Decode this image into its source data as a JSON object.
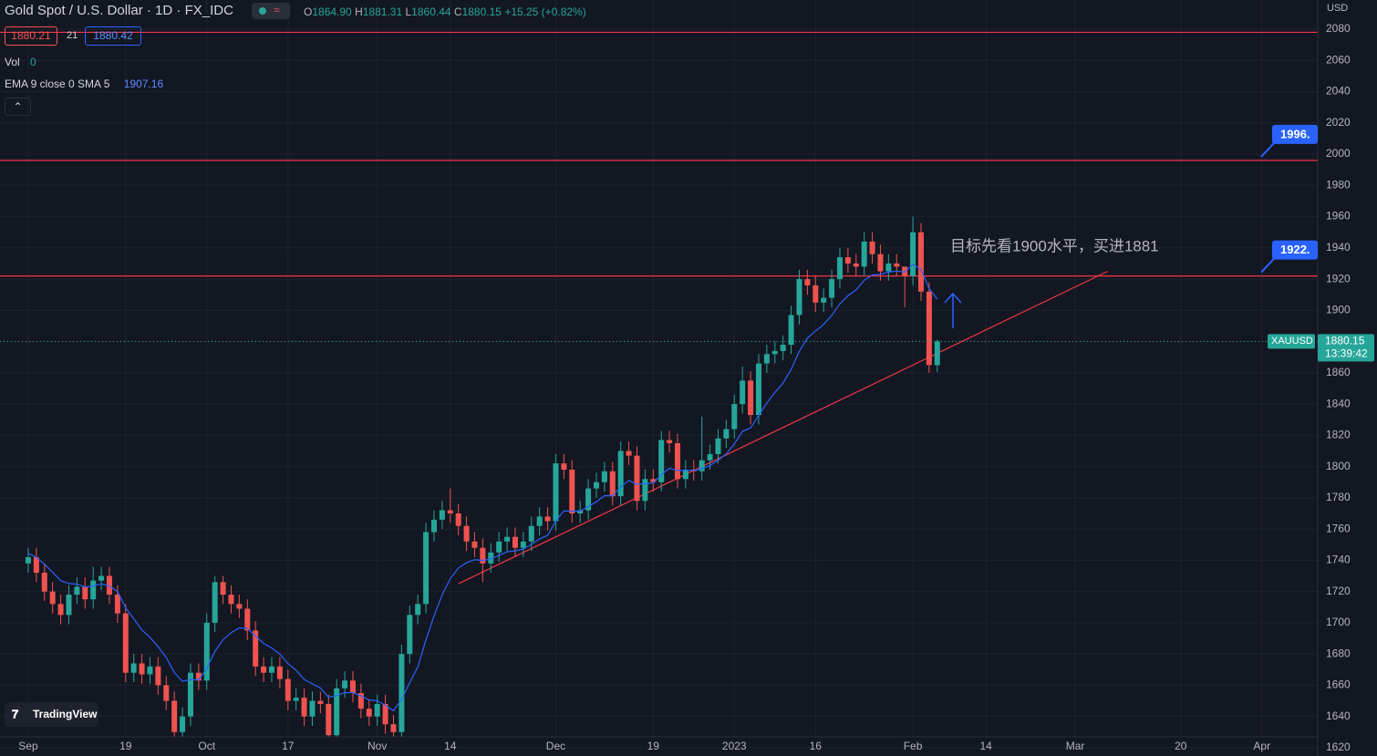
{
  "chart_data": {
    "type": "candlestick",
    "title": "Gold Spot / U.S. Dollar · 1D · FX_IDC",
    "header": {
      "o_label": "O",
      "o": "1864.90",
      "h_label": "H",
      "h": "1881.31",
      "l_label": "L",
      "l": "1860.44",
      "c_label": "C",
      "c": "1880.15",
      "change": "+15.25 (+0.82%)"
    },
    "bid": 1880.21,
    "spread": 21,
    "ask": 1880.42,
    "volume": {
      "label": "Vol",
      "value": 0
    },
    "currency": "USD",
    "logo": "TradingView",
    "up_color": "#26a69a",
    "down_color": "#ef5350",
    "x": [
      0,
      1,
      2,
      3,
      4,
      5,
      6,
      7,
      8,
      9,
      10,
      11,
      12,
      13,
      14,
      15,
      16,
      17,
      18,
      19,
      20,
      21,
      22,
      23,
      24,
      25,
      26,
      27,
      28,
      29,
      30,
      31,
      32,
      33,
      34,
      35,
      36,
      37,
      38,
      39,
      40,
      41,
      42,
      43,
      44,
      45,
      46,
      47,
      48,
      49,
      50,
      51,
      52,
      53,
      54,
      55,
      56,
      57,
      58,
      59,
      60,
      61,
      62,
      63,
      64,
      65,
      66,
      67,
      68,
      69,
      70,
      71,
      72,
      73,
      74,
      75,
      76,
      77,
      78,
      79,
      80,
      81,
      82,
      83,
      84,
      85,
      86,
      87,
      88,
      89,
      90,
      91,
      92,
      93,
      94,
      95,
      96,
      97,
      98,
      99,
      100,
      101,
      102,
      103,
      104,
      105,
      106,
      107,
      108,
      109,
      110,
      111,
      112
    ],
    "open": [
      1738,
      1742,
      1732,
      1720,
      1712,
      1705,
      1718,
      1723,
      1715,
      1727,
      1730,
      1718,
      1706,
      1668,
      1674,
      1667,
      1672,
      1660,
      1650,
      1630,
      1640,
      1668,
      1663,
      1700,
      1726,
      1718,
      1712,
      1709,
      1695,
      1672,
      1668,
      1672,
      1664,
      1650,
      1652,
      1640,
      1650,
      1648,
      1628,
      1658,
      1663,
      1655,
      1645,
      1640,
      1648,
      1635,
      1630,
      1680,
      1705,
      1712,
      1758,
      1766,
      1772,
      1770,
      1762,
      1752,
      1748,
      1738,
      1745,
      1752,
      1755,
      1748,
      1752,
      1762,
      1768,
      1765,
      1802,
      1798,
      1770,
      1772,
      1786,
      1790,
      1797,
      1781,
      1810,
      1807,
      1778,
      1792,
      1790,
      1817,
      1815,
      1792,
      1798,
      1797,
      1804,
      1808,
      1818,
      1824,
      1840,
      1855,
      1833,
      1866,
      1872,
      1874,
      1878,
      1897,
      1920,
      1916,
      1905,
      1908,
      1920,
      1934,
      1930,
      1928,
      1944,
      1936,
      1925,
      1930,
      1928,
      1922,
      1950,
      1912,
      1864.9
    ],
    "high": [
      1748,
      1748,
      1738,
      1726,
      1718,
      1724,
      1729,
      1729,
      1736,
      1736,
      1736,
      1724,
      1712,
      1680,
      1680,
      1678,
      1678,
      1666,
      1656,
      1646,
      1674,
      1674,
      1706,
      1730,
      1730,
      1724,
      1718,
      1715,
      1701,
      1678,
      1678,
      1678,
      1670,
      1658,
      1658,
      1656,
      1656,
      1654,
      1664,
      1669,
      1669,
      1661,
      1651,
      1654,
      1654,
      1641,
      1686,
      1711,
      1718,
      1764,
      1772,
      1778,
      1786,
      1776,
      1768,
      1758,
      1754,
      1751,
      1758,
      1761,
      1761,
      1758,
      1768,
      1774,
      1774,
      1808,
      1808,
      1804,
      1778,
      1792,
      1796,
      1803,
      1803,
      1816,
      1816,
      1813,
      1798,
      1798,
      1823,
      1823,
      1821,
      1804,
      1804,
      1832,
      1814,
      1824,
      1830,
      1846,
      1864,
      1861,
      1872,
      1878,
      1880,
      1884,
      1903,
      1926,
      1926,
      1922,
      1914,
      1926,
      1940,
      1940,
      1936,
      1950,
      1950,
      1942,
      1936,
      1936,
      1928,
      1960,
      1956,
      1918,
      1881.31
    ],
    "low": [
      1732,
      1726,
      1714,
      1706,
      1699,
      1699,
      1712,
      1709,
      1709,
      1721,
      1712,
      1700,
      1662,
      1662,
      1661,
      1661,
      1654,
      1644,
      1618,
      1622,
      1634,
      1657,
      1657,
      1694,
      1712,
      1706,
      1703,
      1689,
      1666,
      1662,
      1662,
      1658,
      1644,
      1644,
      1634,
      1634,
      1642,
      1622,
      1622,
      1652,
      1649,
      1639,
      1634,
      1634,
      1629,
      1618,
      1624,
      1674,
      1699,
      1706,
      1752,
      1760,
      1764,
      1756,
      1746,
      1742,
      1726,
      1732,
      1739,
      1746,
      1742,
      1742,
      1746,
      1756,
      1759,
      1759,
      1792,
      1764,
      1764,
      1766,
      1780,
      1784,
      1775,
      1775,
      1801,
      1772,
      1772,
      1784,
      1784,
      1809,
      1786,
      1786,
      1791,
      1791,
      1798,
      1802,
      1812,
      1818,
      1834,
      1827,
      1827,
      1860,
      1866,
      1868,
      1872,
      1891,
      1910,
      1899,
      1899,
      1902,
      1914,
      1924,
      1922,
      1922,
      1930,
      1919,
      1919,
      1922,
      1902,
      1916,
      1906,
      1860,
      1860.44
    ],
    "close": [
      1742,
      1732,
      1720,
      1712,
      1705,
      1718,
      1723,
      1715,
      1727,
      1730,
      1718,
      1706,
      1668,
      1674,
      1667,
      1672,
      1660,
      1650,
      1630,
      1640,
      1668,
      1663,
      1700,
      1726,
      1718,
      1712,
      1709,
      1695,
      1672,
      1668,
      1672,
      1664,
      1650,
      1652,
      1640,
      1650,
      1648,
      1628,
      1658,
      1663,
      1655,
      1645,
      1640,
      1648,
      1635,
      1630,
      1680,
      1705,
      1712,
      1758,
      1766,
      1772,
      1770,
      1762,
      1752,
      1748,
      1738,
      1745,
      1752,
      1755,
      1748,
      1752,
      1762,
      1768,
      1765,
      1802,
      1798,
      1770,
      1772,
      1786,
      1790,
      1797,
      1781,
      1810,
      1807,
      1778,
      1792,
      1790,
      1817,
      1815,
      1792,
      1798,
      1797,
      1804,
      1808,
      1818,
      1824,
      1840,
      1855,
      1833,
      1866,
      1872,
      1874,
      1878,
      1897,
      1920,
      1916,
      1905,
      1908,
      1920,
      1934,
      1930,
      1928,
      1944,
      1936,
      1925,
      1930,
      1928,
      1922,
      1950,
      1912,
      1865,
      1880.15
    ],
    "ema": {
      "name": "EMA 9 close 0 SMA 5",
      "value_label": "1907.16",
      "color": "#2962ff",
      "values": [
        1744.4,
        1741.9,
        1737.5,
        1732.4,
        1726.9,
        1725.1,
        1724.7,
        1722.8,
        1723.6,
        1724.9,
        1723.5,
        1720.0,
        1709.6,
        1702.5,
        1695.4,
        1690.7,
        1684.6,
        1677.7,
        1668.1,
        1662.5,
        1663.6,
        1663.5,
        1670.8,
        1681.8,
        1689.1,
        1693.7,
        1696.7,
        1696.4,
        1691.5,
        1686.8,
        1683.8,
        1679.9,
        1673.9,
        1669.5,
        1663.6,
        1660.9,
        1658.3,
        1652.3,
        1653.4,
        1655.3,
        1655.3,
        1653.2,
        1650.6,
        1650.1,
        1647.1,
        1643.7,
        1650.9,
        1661.7,
        1671.8,
        1689.0,
        1704.4,
        1717.9,
        1728.3,
        1735.1,
        1738.4,
        1740.4,
        1739.9,
        1740.9,
        1743.1,
        1745.5,
        1746.0,
        1747.2,
        1750.2,
        1753.7,
        1756.0,
        1765.2,
        1771.7,
        1771.4,
        1771.5,
        1774.4,
        1777.5,
        1781.4,
        1781.3,
        1787.1,
        1791.1,
        1788.5,
        1789.2,
        1789.3,
        1794.9,
        1798.9,
        1797.5,
        1797.6,
        1797.5,
        1798.8,
        1800.6,
        1804.1,
        1808.1,
        1814.5,
        1822.6,
        1824.7,
        1832.9,
        1840.7,
        1847.4,
        1853.5,
        1862.2,
        1873.8,
        1882.2,
        1886.8,
        1891.0,
        1896.8,
        1904.2,
        1909.4,
        1913.1,
        1919.3,
        1922.6,
        1923.1,
        1924.5,
        1925.2,
        1924.5,
        1929.6,
        1926.1,
        1913.9,
        1907.16
      ]
    },
    "hlines": [
      {
        "value": 2078,
        "color": "#f23645"
      },
      {
        "value": 1996,
        "label": "1996.",
        "color": "#f23645"
      },
      {
        "value": 1922,
        "label": "1922.",
        "color": "#f23645"
      }
    ],
    "trendline": {
      "x": [
        53,
        133
      ],
      "y": [
        1725,
        1925
      ],
      "color": "#f23645"
    },
    "annotation": {
      "text": "目标先看1900水平，买进1881",
      "color": "#f23645"
    },
    "last_price": {
      "value": 1880.15,
      "countdown": "13:39:42",
      "symbol": "XAUUSD"
    },
    "xlim": [
      -3.48,
      158.88
    ],
    "xticks": [
      {
        "value": 0,
        "label": "Sep"
      },
      {
        "value": 12,
        "label": "19"
      },
      {
        "value": 22,
        "label": "Oct"
      },
      {
        "value": 32,
        "label": "17"
      },
      {
        "value": 43,
        "label": "Nov"
      },
      {
        "value": 52,
        "label": "14"
      },
      {
        "value": 65,
        "label": "Dec"
      },
      {
        "value": 77,
        "label": "19"
      },
      {
        "value": 87,
        "label": "2023"
      },
      {
        "value": 97,
        "label": "16"
      },
      {
        "value": 109,
        "label": "Feb"
      },
      {
        "value": 118,
        "label": "14"
      },
      {
        "value": 129,
        "label": "Mar"
      },
      {
        "value": 142,
        "label": "20"
      },
      {
        "value": 152,
        "label": "Apr"
      }
    ],
    "ylim": [
      1614.7,
      2098.7
    ],
    "yticks": [
      1620,
      1640,
      1660,
      1680,
      1700,
      1720,
      1740,
      1760,
      1780,
      1800,
      1820,
      1840,
      1860,
      1880,
      1900,
      1920,
      1940,
      1960,
      1980,
      2000,
      2020,
      2040,
      2060,
      2080
    ],
    "grid": true
  }
}
